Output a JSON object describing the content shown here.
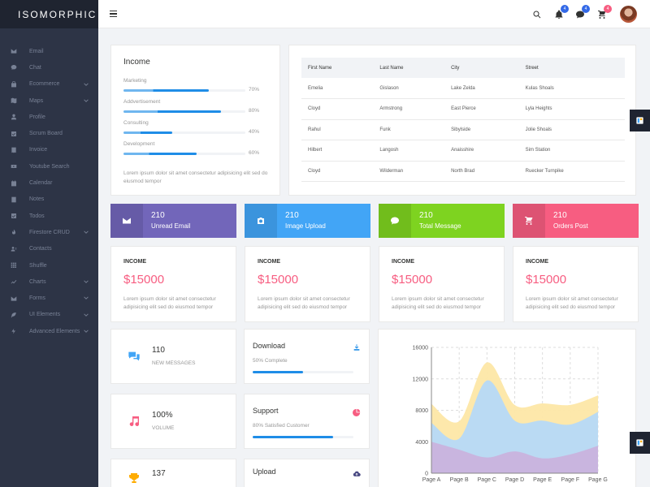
{
  "app": {
    "title": "ISOMORPHIC"
  },
  "sidebar": {
    "items": [
      {
        "label": "Email",
        "icon": "mail-icon",
        "chev": false
      },
      {
        "label": "Chat",
        "icon": "chat-icon",
        "chev": false
      },
      {
        "label": "Ecommerce",
        "icon": "bag-icon",
        "chev": true
      },
      {
        "label": "Maps",
        "icon": "map-icon",
        "chev": true
      },
      {
        "label": "Profile",
        "icon": "person-icon",
        "chev": false
      },
      {
        "label": "Scrum Board",
        "icon": "check-square-icon",
        "chev": false
      },
      {
        "label": "Invoice",
        "icon": "invoice-icon",
        "chev": false
      },
      {
        "label": "Youtube Search",
        "icon": "youtube-icon",
        "chev": false
      },
      {
        "label": "Calendar",
        "icon": "calendar-icon",
        "chev": false
      },
      {
        "label": "Notes",
        "icon": "notes-icon",
        "chev": false
      },
      {
        "label": "Todos",
        "icon": "todo-icon",
        "chev": false
      },
      {
        "label": "Firestore CRUD",
        "icon": "fire-icon",
        "chev": true
      },
      {
        "label": "Contacts",
        "icon": "contacts-icon",
        "chev": false
      },
      {
        "label": "Shuffle",
        "icon": "shuffle-icon",
        "chev": false
      },
      {
        "label": "Charts",
        "icon": "chart-icon",
        "chev": true
      },
      {
        "label": "Forms",
        "icon": "form-icon",
        "chev": true
      },
      {
        "label": "UI Elements",
        "icon": "leaf-icon",
        "chev": true
      },
      {
        "label": "Advanced Elements",
        "icon": "bolt-icon",
        "chev": true
      }
    ]
  },
  "topbar": {
    "badges": {
      "notifications": "4",
      "messages": "4",
      "cart": "4"
    },
    "colors": {
      "notifications": "#3369e7",
      "messages": "#3369e7",
      "cart": "#f75d81"
    }
  },
  "income": {
    "title": "Income",
    "rows": [
      {
        "label": "Marketing",
        "pct_text": "70%",
        "pct": 70
      },
      {
        "label": "Addvertisement",
        "pct_text": "80%",
        "pct": 80
      },
      {
        "label": "Consulting",
        "pct_text": "40%",
        "pct": 40
      },
      {
        "label": "Development",
        "pct_text": "60%",
        "pct": 60
      }
    ],
    "desc": "Lorem ipsum dolor sit amet consectetur adipisicing elit sed do eiusmod tempor"
  },
  "table": {
    "headers": [
      "First Name",
      "Last Name",
      "City",
      "Street"
    ],
    "rows": [
      [
        "Emelia",
        "Gislason",
        "Lake Zelda",
        "Kulas Shoals"
      ],
      [
        "Cloyd",
        "Armstrong",
        "East Pierce",
        "Lyla Heights"
      ],
      [
        "Rahul",
        "Funk",
        "Sibylside",
        "Jolie Shoals"
      ],
      [
        "Hilbert",
        "Langosh",
        "Anaisshire",
        "Sim Station"
      ],
      [
        "Cloyd",
        "Wilderman",
        "North Brad",
        "Ruecker Turnpike"
      ]
    ]
  },
  "stats": [
    {
      "num": "210",
      "label": "Unread Email",
      "color": "#7266ba",
      "icon": "email-icon"
    },
    {
      "num": "210",
      "label": "Image Upload",
      "color": "#42a5f6",
      "icon": "camera-icon"
    },
    {
      "num": "210",
      "label": "Total Message",
      "color": "#7ed320",
      "icon": "message-icon"
    },
    {
      "num": "210",
      "label": "Orders Post",
      "color": "#f75d81",
      "icon": "cart-icon"
    }
  ],
  "sales": [
    {
      "title": "INCOME",
      "amount": "$15000",
      "desc": "Lorem ipsum dolor sit amet consectetur adipisicing elit sed do eiusmod tempor"
    },
    {
      "title": "INCOME",
      "amount": "$15000",
      "desc": "Lorem ipsum dolor sit amet consectetur adipisicing elit sed do eiusmod tempor"
    },
    {
      "title": "INCOME",
      "amount": "$15000",
      "desc": "Lorem ipsum dolor sit amet consectetur adipisicing elit sed do eiusmod tempor"
    },
    {
      "title": "INCOME",
      "amount": "$15000",
      "desc": "Lorem ipsum dolor sit amet consectetur adipisicing elit sed do eiusmod tempor"
    }
  ],
  "widgets": [
    {
      "num": "110",
      "label": "New Messages",
      "icon": "chat-bubbles-icon",
      "color": "#42a5f6"
    },
    {
      "num": "100%",
      "label": "Volume",
      "icon": "music-note-icon",
      "color": "#f75d81"
    },
    {
      "num": "137",
      "label": "",
      "icon": "trophy-icon",
      "color": "#feac01"
    }
  ],
  "progress_widgets": [
    {
      "title": "Download",
      "sub": "50% Complete",
      "pct": 50,
      "icon": "download-icon",
      "color": "#1f8de7"
    },
    {
      "title": "Support",
      "sub": "80% Satisfied Customer",
      "pct": 80,
      "icon": "pie-icon",
      "color": "#f75d81"
    },
    {
      "title": "Upload",
      "sub": "",
      "pct": 0,
      "icon": "upload-icon",
      "color": "#494982"
    }
  ],
  "chart_data": {
    "type": "area",
    "categories": [
      "Page A",
      "Page B",
      "Page C",
      "Page D",
      "Page E",
      "Page F",
      "Page G"
    ],
    "series": [
      {
        "values": [
          4000,
          3000,
          2000,
          2780,
          1890,
          2390,
          3490
        ],
        "color": "#c9b3dd"
      },
      {
        "values": [
          2400,
          1398,
          9800,
          3908,
          4800,
          3800,
          4300
        ],
        "color": "#b6d9f7"
      },
      {
        "values": [
          2400,
          2210,
          2290,
          2000,
          2181,
          2500,
          2100
        ],
        "color": "#fde7a6"
      }
    ],
    "ylim": [
      0,
      16000
    ],
    "yticks": [
      "0",
      "4000",
      "8000",
      "12000",
      "16000"
    ],
    "grid": true
  }
}
